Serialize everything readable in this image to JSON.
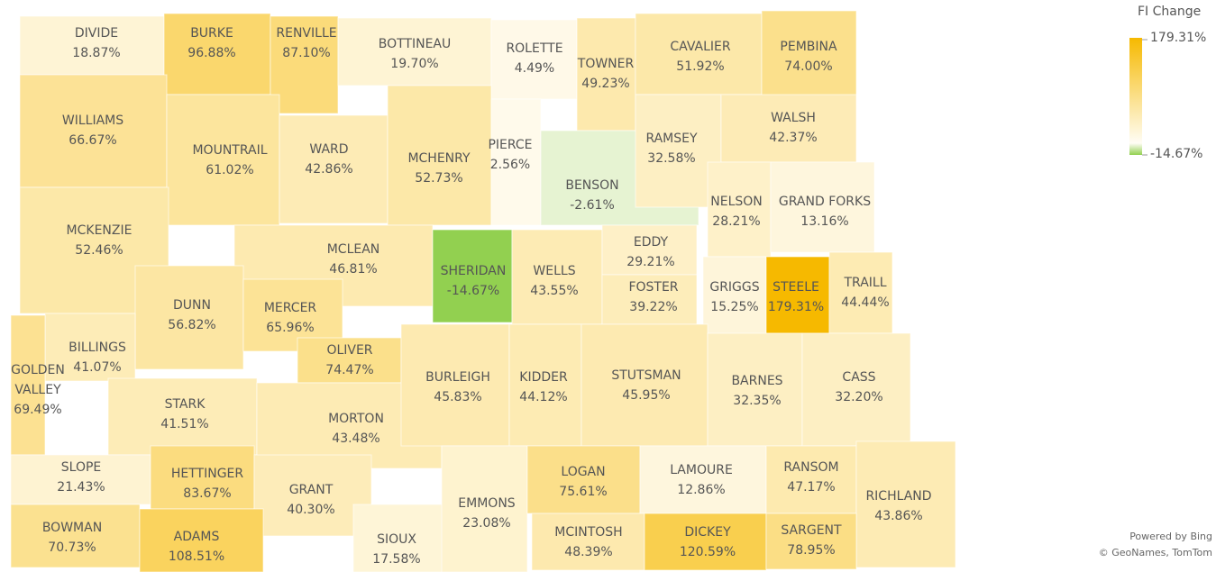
{
  "title": "FI Change",
  "legend": {
    "max": {
      "value": 179.31,
      "label": "179.31%"
    },
    "min": {
      "value": -14.67,
      "label": "-14.67%"
    }
  },
  "attribution": [
    "Powered by Bing",
    "© GeoNames, TomTom"
  ],
  "counties": [
    {
      "name": "DIVIDE",
      "value": 18.87,
      "label": "18.87%"
    },
    {
      "name": "BURKE",
      "value": 96.88,
      "label": "96.88%"
    },
    {
      "name": "RENVILLE",
      "value": 87.1,
      "label": "87.10%"
    },
    {
      "name": "BOTTINEAU",
      "value": 19.7,
      "label": "19.70%"
    },
    {
      "name": "ROLETTE",
      "value": 4.49,
      "label": "4.49%"
    },
    {
      "name": "TOWNER",
      "value": 49.23,
      "label": "49.23%"
    },
    {
      "name": "CAVALIER",
      "value": 51.92,
      "label": "51.92%"
    },
    {
      "name": "PEMBINA",
      "value": 74.0,
      "label": "74.00%"
    },
    {
      "name": "WILLIAMS",
      "value": 66.67,
      "label": "66.67%"
    },
    {
      "name": "MOUNTRAIL",
      "value": 61.02,
      "label": "61.02%"
    },
    {
      "name": "WARD",
      "value": 42.86,
      "label": "42.86%"
    },
    {
      "name": "MCHENRY",
      "value": 52.73,
      "label": "52.73%"
    },
    {
      "name": "PIERCE",
      "value": 2.56,
      "label": "2.56%"
    },
    {
      "name": "BENSON",
      "value": -2.61,
      "label": "-2.61%"
    },
    {
      "name": "RAMSEY",
      "value": 32.58,
      "label": "32.58%"
    },
    {
      "name": "WALSH",
      "value": 42.37,
      "label": "42.37%"
    },
    {
      "name": "NELSON",
      "value": 28.21,
      "label": "28.21%"
    },
    {
      "name": "GRAND FORKS",
      "value": 13.16,
      "label": "13.16%"
    },
    {
      "name": "MCKENZIE",
      "value": 52.46,
      "label": "52.46%"
    },
    {
      "name": "MCLEAN",
      "value": 46.81,
      "label": "46.81%"
    },
    {
      "name": "SHERIDAN",
      "value": -14.67,
      "label": "-14.67%"
    },
    {
      "name": "WELLS",
      "value": 43.55,
      "label": "43.55%"
    },
    {
      "name": "EDDY",
      "value": 29.21,
      "label": "29.21%"
    },
    {
      "name": "FOSTER",
      "value": 39.22,
      "label": "39.22%"
    },
    {
      "name": "GRIGGS",
      "value": 15.25,
      "label": "15.25%"
    },
    {
      "name": "STEELE",
      "value": 179.31,
      "label": "179.31%"
    },
    {
      "name": "TRAILL",
      "value": 44.44,
      "label": "44.44%"
    },
    {
      "name": "DUNN",
      "value": 56.82,
      "label": "56.82%"
    },
    {
      "name": "MERCER",
      "value": 65.96,
      "label": "65.96%"
    },
    {
      "name": "OLIVER",
      "value": 74.47,
      "label": "74.47%"
    },
    {
      "name": "BILLINGS",
      "value": 41.07,
      "label": "41.07%"
    },
    {
      "name": "GOLDEN VALLEY",
      "value": 69.49,
      "label": "69.49%"
    },
    {
      "name": "STARK",
      "value": 41.51,
      "label": "41.51%"
    },
    {
      "name": "MORTON",
      "value": 43.48,
      "label": "43.48%"
    },
    {
      "name": "BURLEIGH",
      "value": 45.83,
      "label": "45.83%"
    },
    {
      "name": "KIDDER",
      "value": 44.12,
      "label": "44.12%"
    },
    {
      "name": "STUTSMAN",
      "value": 45.95,
      "label": "45.95%"
    },
    {
      "name": "BARNES",
      "value": 32.35,
      "label": "32.35%"
    },
    {
      "name": "CASS",
      "value": 32.2,
      "label": "32.20%"
    },
    {
      "name": "SLOPE",
      "value": 21.43,
      "label": "21.43%"
    },
    {
      "name": "HETTINGER",
      "value": 83.67,
      "label": "83.67%"
    },
    {
      "name": "GRANT",
      "value": 40.3,
      "label": "40.30%"
    },
    {
      "name": "SIOUX",
      "value": 17.58,
      "label": "17.58%"
    },
    {
      "name": "EMMONS",
      "value": 23.08,
      "label": "23.08%"
    },
    {
      "name": "LOGAN",
      "value": 75.61,
      "label": "75.61%"
    },
    {
      "name": "LAMOURE",
      "value": 12.86,
      "label": "12.86%"
    },
    {
      "name": "RANSOM",
      "value": 47.17,
      "label": "47.17%"
    },
    {
      "name": "RICHLAND",
      "value": 43.86,
      "label": "43.86%"
    },
    {
      "name": "BOWMAN",
      "value": 70.73,
      "label": "70.73%"
    },
    {
      "name": "ADAMS",
      "value": 108.51,
      "label": "108.51%"
    },
    {
      "name": "MCINTOSH",
      "value": 48.39,
      "label": "48.39%"
    },
    {
      "name": "DICKEY",
      "value": 120.59,
      "label": "120.59%"
    },
    {
      "name": "SARGENT",
      "value": 78.95,
      "label": "78.95%"
    }
  ]
}
